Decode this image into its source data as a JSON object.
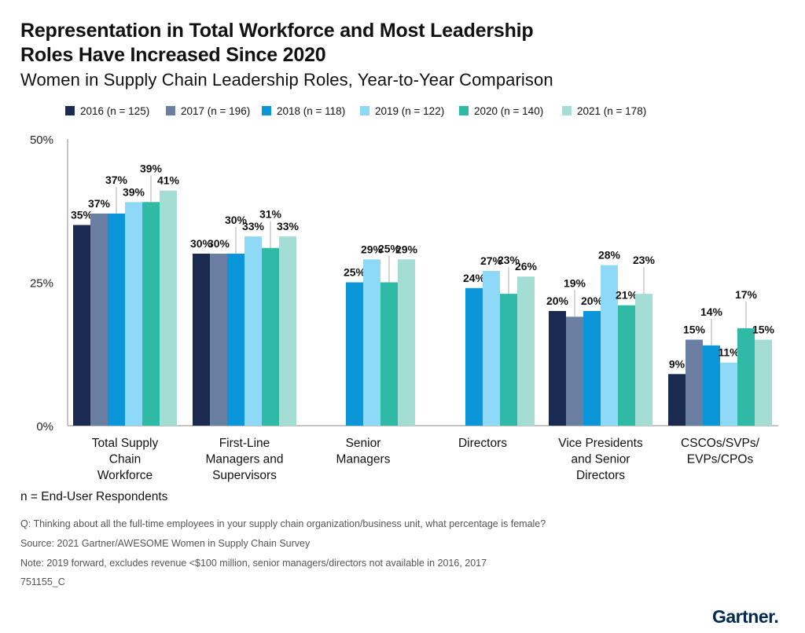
{
  "header": {
    "title_line1": "Representation in Total Workforce and Most Leadership",
    "title_line2": "Roles Have Increased Since 2020",
    "subtitle": "Women in Supply Chain Leadership Roles, Year-to-Year Comparison"
  },
  "chart_data": {
    "type": "bar",
    "title": "Representation in Total Workforce and Most Leadership Roles Have Increased Since 2020",
    "subtitle": "Women in Supply Chain Leadership Roles, Year-to-Year Comparison",
    "xlabel": "",
    "ylabel": "",
    "ylim": [
      0,
      50
    ],
    "y_ticks": [
      "0%",
      "25%",
      "50%"
    ],
    "y_tick_values": [
      0,
      25,
      50
    ],
    "grid": false,
    "legend_position": "top",
    "categories": [
      [
        "Total Supply",
        "Chain",
        "Workforce"
      ],
      [
        "First-Line",
        "Managers and",
        "Supervisors"
      ],
      [
        "Senior",
        "Managers"
      ],
      [
        "Directors"
      ],
      [
        "Vice Presidents",
        "and Senior",
        "Directors"
      ],
      [
        "CSCOs/SVPs/",
        "EVPs/CPOs"
      ]
    ],
    "series": [
      {
        "name": "2016 (n = 125)",
        "color": "#1b2a50",
        "values": [
          35,
          30,
          null,
          null,
          20,
          9
        ]
      },
      {
        "name": "2017 (n = 196)",
        "color": "#6b7fa3",
        "values": [
          37,
          30,
          null,
          null,
          19,
          15
        ]
      },
      {
        "name": "2018 (n = 118)",
        "color": "#0a96d9",
        "values": [
          37,
          30,
          25,
          24,
          20,
          14
        ]
      },
      {
        "name": "2019 (n = 122)",
        "color": "#8ed8f8",
        "values": [
          39,
          33,
          29,
          27,
          28,
          11
        ]
      },
      {
        "name": "2020 (n = 140)",
        "color": "#2ebaa5",
        "values": [
          39,
          31,
          25,
          23,
          21,
          17
        ]
      },
      {
        "name": "2021 (n = 178)",
        "color": "#a4ddd4",
        "values": [
          41,
          33,
          29,
          26,
          23,
          15
        ]
      }
    ],
    "value_suffix": "%"
  },
  "footer": {
    "n_note": "n = End-User Respondents",
    "question": "Q: Thinking about all the full-time employees in your supply chain organization/business unit, what percentage is female?",
    "source": "Source: 2021 Gartner/AWESOME Women in Supply Chain Survey",
    "note": "Note: 2019 forward, excludes revenue <$100 million, senior managers/directors not available in 2016, 2017",
    "id": "751155_C",
    "logo": "Gartner."
  }
}
